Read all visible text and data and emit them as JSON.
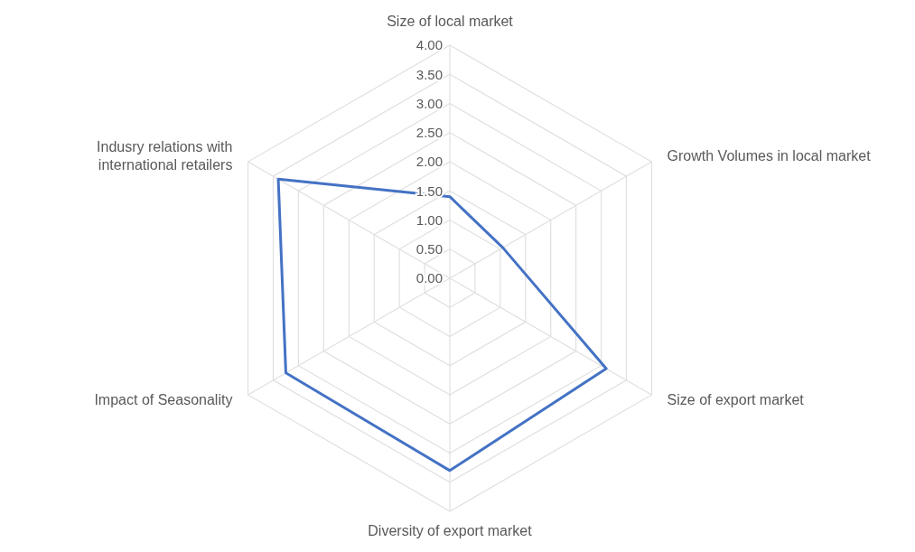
{
  "chart_data": {
    "type": "radar",
    "categories": [
      "Size of local market",
      "Growth Volumes in local market",
      "Size of export market",
      "Diversity of export market",
      "Impact of Seasonality",
      "Indusry relations with\ninternational retailers"
    ],
    "series": [
      {
        "color": "#4472c4",
        "values": [
          1.4,
          1.05,
          3.1,
          3.3,
          3.25,
          3.4
        ]
      }
    ],
    "ylim": [
      0,
      4
    ],
    "yticks": [
      {
        "value": 0,
        "label": "0.00"
      },
      {
        "value": 0.5,
        "label": "0.50"
      },
      {
        "value": 1,
        "label": "1.00"
      },
      {
        "value": 1.5,
        "label": "1.50"
      },
      {
        "value": 2,
        "label": "2.00"
      },
      {
        "value": 2.5,
        "label": "2.50"
      },
      {
        "value": 3,
        "label": "3.00"
      },
      {
        "value": 3.5,
        "label": "3.50"
      },
      {
        "value": 4,
        "label": "4.00"
      }
    ],
    "grid": true
  }
}
